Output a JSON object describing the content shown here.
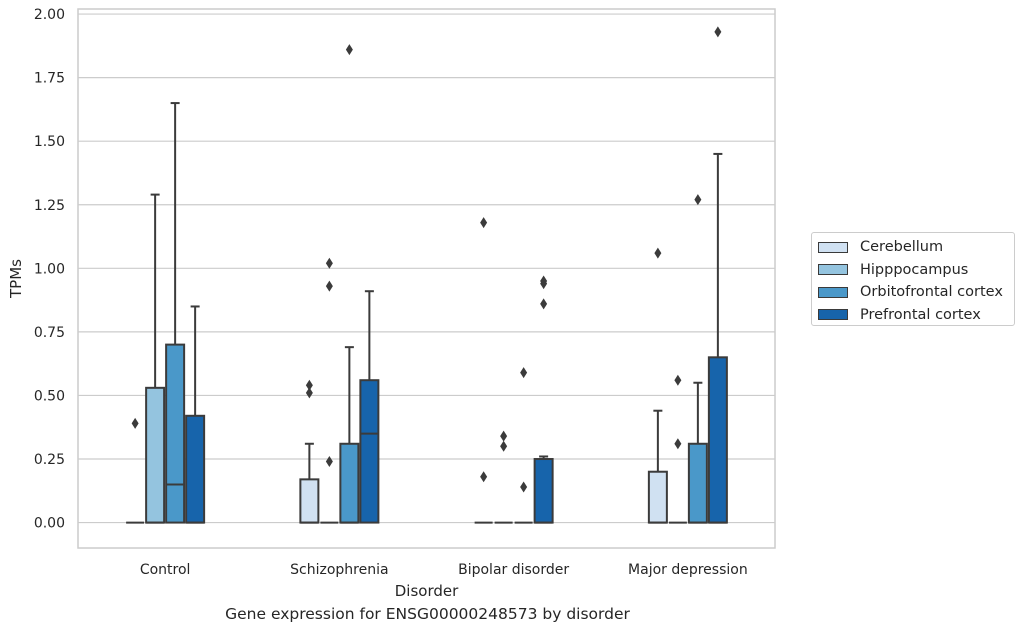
{
  "chart_data": {
    "type": "box",
    "xlabel": "Disorder",
    "ylabel": "TPMs",
    "caption": "Gene expression for ENSG00000248573 by disorder",
    "ylim": [
      -0.1,
      2.02
    ],
    "yticks": [
      "0.00",
      "0.25",
      "0.50",
      "0.75",
      "1.00",
      "1.25",
      "1.50",
      "1.75",
      "2.00"
    ],
    "grid": "horizontal",
    "legend_position": "right",
    "categories": [
      "Control",
      "Schizophrenia",
      "Bipolar disorder",
      "Major depression"
    ],
    "series": [
      {
        "name": "Cerebellum",
        "color": "#d0e1f2",
        "boxes": [
          {
            "q1": 0,
            "median": 0,
            "q3": 0,
            "whisker_low": 0,
            "whisker_high": 0,
            "outliers": [
              0.39
            ]
          },
          {
            "q1": 0,
            "median": 0,
            "q3": 0.17,
            "whisker_low": 0,
            "whisker_high": 0.31,
            "outliers": [
              0.51,
              0.54
            ]
          },
          {
            "q1": 0,
            "median": 0,
            "q3": 0,
            "whisker_low": 0,
            "whisker_high": 0,
            "outliers": [
              0.18,
              1.18
            ]
          },
          {
            "q1": 0,
            "median": 0,
            "q3": 0.2,
            "whisker_low": 0,
            "whisker_high": 0.44,
            "outliers": [
              1.06
            ]
          }
        ]
      },
      {
        "name": "Hipppocampus",
        "color": "#94c4df",
        "boxes": [
          {
            "q1": 0,
            "median": 0,
            "q3": 0.53,
            "whisker_low": 0,
            "whisker_high": 1.29,
            "outliers": []
          },
          {
            "q1": 0,
            "median": 0,
            "q3": 0,
            "whisker_low": 0,
            "whisker_high": 0,
            "outliers": [
              0.24,
              0.93,
              1.02
            ]
          },
          {
            "q1": 0,
            "median": 0,
            "q3": 0,
            "whisker_low": 0,
            "whisker_high": 0,
            "outliers": [
              0.3,
              0.34
            ]
          },
          {
            "q1": 0,
            "median": 0,
            "q3": 0,
            "whisker_low": 0,
            "whisker_high": 0,
            "outliers": [
              0.31,
              0.56
            ]
          }
        ]
      },
      {
        "name": "Orbitofrontal cortex",
        "color": "#4a98c9",
        "boxes": [
          {
            "q1": 0,
            "median": 0.15,
            "q3": 0.7,
            "whisker_low": 0,
            "whisker_high": 1.65,
            "outliers": []
          },
          {
            "q1": 0,
            "median": 0,
            "q3": 0.31,
            "whisker_low": 0,
            "whisker_high": 0.69,
            "outliers": [
              1.86
            ]
          },
          {
            "q1": 0,
            "median": 0,
            "q3": 0,
            "whisker_low": 0,
            "whisker_high": 0,
            "outliers": [
              0.14,
              0.59
            ]
          },
          {
            "q1": 0,
            "median": 0,
            "q3": 0.31,
            "whisker_low": 0,
            "whisker_high": 0.55,
            "outliers": [
              1.27
            ]
          }
        ]
      },
      {
        "name": "Prefrontal cortex",
        "color": "#1764ab",
        "boxes": [
          {
            "q1": 0,
            "median": 0,
            "q3": 0.42,
            "whisker_low": 0,
            "whisker_high": 0.85,
            "outliers": []
          },
          {
            "q1": 0,
            "median": 0.35,
            "q3": 0.56,
            "whisker_low": 0,
            "whisker_high": 0.91,
            "outliers": []
          },
          {
            "q1": 0,
            "median": 0,
            "q3": 0.25,
            "whisker_low": 0,
            "whisker_high": 0.26,
            "outliers": [
              0.86,
              0.94,
              0.95
            ]
          },
          {
            "q1": 0,
            "median": 0,
            "q3": 0.65,
            "whisker_low": 0,
            "whisker_high": 1.45,
            "outliers": [
              1.93
            ]
          }
        ]
      }
    ]
  }
}
